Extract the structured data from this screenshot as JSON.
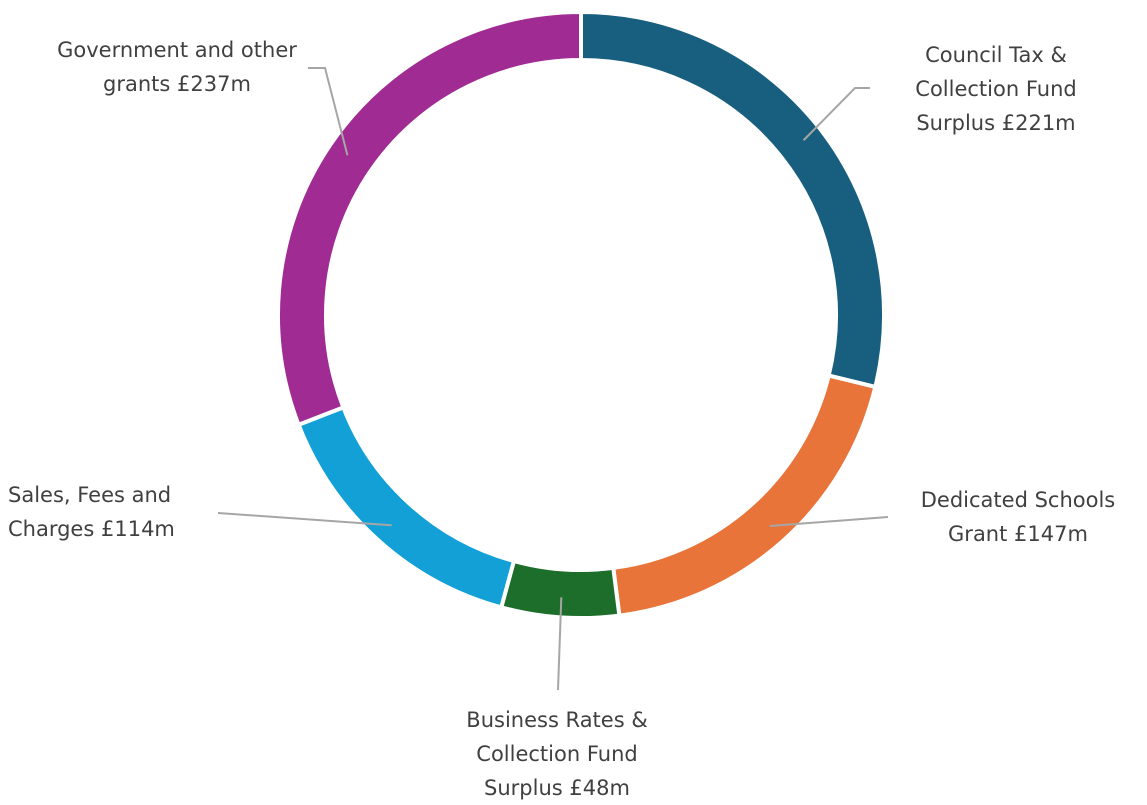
{
  "chart_data": {
    "type": "donut",
    "categories": [
      "Council Tax & Collection Fund Surplus",
      "Dedicated Schools Grant",
      "Business Rates & Collection Fund Surplus",
      "Sales, Fees and Charges",
      "Government and other grants"
    ],
    "values": [
      221,
      147,
      48,
      114,
      237
    ],
    "value_labels": [
      "£221m",
      "£147m",
      "£48m",
      "£114m",
      "£237m"
    ],
    "colors": [
      "#175e7f",
      "#e8743a",
      "#1c6e2a",
      "#12a0d7",
      "#a02b93"
    ]
  }
}
